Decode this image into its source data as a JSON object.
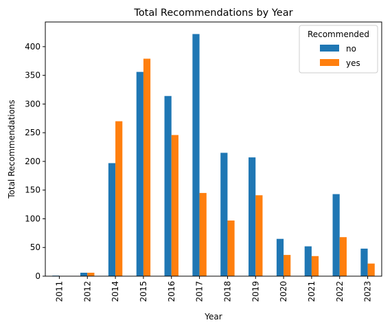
{
  "chart_data": {
    "type": "bar",
    "title": "Total Recommendations by Year",
    "xlabel": "Year",
    "ylabel": "Total Recommendations",
    "categories": [
      "2011",
      "2012",
      "2014",
      "2015",
      "2016",
      "2017",
      "2018",
      "2019",
      "2020",
      "2021",
      "2022",
      "2023"
    ],
    "series": [
      {
        "name": "no",
        "color": "#1f77b4",
        "values": [
          1,
          6,
          197,
          356,
          314,
          422,
          215,
          207,
          65,
          52,
          143,
          48
        ]
      },
      {
        "name": "yes",
        "color": "#ff7f0e",
        "values": [
          0,
          6,
          270,
          379,
          246,
          145,
          97,
          141,
          37,
          35,
          68,
          22
        ]
      }
    ],
    "ylim": [
      0,
      443
    ],
    "yticks": [
      0,
      50,
      100,
      150,
      200,
      250,
      300,
      350,
      400
    ],
    "legend": {
      "title": "Recommended",
      "position": "top-right"
    },
    "grid": false
  }
}
